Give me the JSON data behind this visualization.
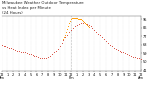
{
  "title": "Milwaukee Weather Outdoor Temperature vs Heat Index per Minute (24 Hours)",
  "title_line1": "Milwaukee Weather Outdoor Temperature",
  "title_line2": "vs Heat Index per Minute (24 Hours)",
  "bg_color": "#ffffff",
  "temp_color": "#cc1100",
  "heat_color": "#ff9900",
  "y_ticks": [
    41,
    50,
    59,
    68,
    77,
    86,
    95
  ],
  "y_min": 40,
  "y_max": 99,
  "title_fontsize": 2.8,
  "tick_fontsize": 2.5,
  "temp_data": [
    [
      0,
      68
    ],
    [
      20,
      67
    ],
    [
      40,
      67
    ],
    [
      60,
      66
    ],
    [
      80,
      65
    ],
    [
      100,
      65
    ],
    [
      120,
      64
    ],
    [
      140,
      63
    ],
    [
      160,
      62
    ],
    [
      180,
      62
    ],
    [
      200,
      61
    ],
    [
      220,
      60
    ],
    [
      240,
      60
    ],
    [
      260,
      59
    ],
    [
      280,
      58
    ],
    [
      300,
      58
    ],
    [
      320,
      57
    ],
    [
      340,
      56
    ],
    [
      360,
      56
    ],
    [
      380,
      55
    ],
    [
      400,
      54
    ],
    [
      420,
      54
    ],
    [
      440,
      54
    ],
    [
      460,
      54
    ],
    [
      480,
      55
    ],
    [
      500,
      56
    ],
    [
      520,
      58
    ],
    [
      540,
      60
    ],
    [
      560,
      62
    ],
    [
      580,
      64
    ],
    [
      600,
      67
    ],
    [
      620,
      70
    ],
    [
      640,
      73
    ],
    [
      660,
      76
    ],
    [
      680,
      79
    ],
    [
      700,
      82
    ],
    [
      720,
      84
    ],
    [
      740,
      86
    ],
    [
      760,
      88
    ],
    [
      780,
      89
    ],
    [
      800,
      90
    ],
    [
      820,
      91
    ],
    [
      840,
      91
    ],
    [
      860,
      91
    ],
    [
      880,
      90
    ],
    [
      900,
      89
    ],
    [
      920,
      88
    ],
    [
      940,
      86
    ],
    [
      960,
      84
    ],
    [
      980,
      82
    ],
    [
      1000,
      80
    ],
    [
      1020,
      78
    ],
    [
      1040,
      76
    ],
    [
      1060,
      74
    ],
    [
      1080,
      72
    ],
    [
      1100,
      70
    ],
    [
      1120,
      68
    ],
    [
      1140,
      67
    ],
    [
      1160,
      65
    ],
    [
      1180,
      64
    ],
    [
      1200,
      63
    ],
    [
      1220,
      62
    ],
    [
      1240,
      61
    ],
    [
      1260,
      60
    ],
    [
      1280,
      59
    ],
    [
      1300,
      58
    ],
    [
      1320,
      57
    ],
    [
      1340,
      56
    ],
    [
      1360,
      55
    ],
    [
      1380,
      55
    ],
    [
      1400,
      54
    ],
    [
      1420,
      54
    ],
    [
      1440,
      53
    ]
  ],
  "heat_data": [
    [
      640,
      74
    ],
    [
      650,
      76
    ],
    [
      660,
      79
    ],
    [
      670,
      82
    ],
    [
      680,
      85
    ],
    [
      690,
      88
    ],
    [
      700,
      91
    ],
    [
      710,
      93
    ],
    [
      720,
      95
    ],
    [
      730,
      96
    ],
    [
      740,
      97
    ],
    [
      750,
      97
    ],
    [
      760,
      97
    ],
    [
      770,
      96
    ],
    [
      780,
      96
    ],
    [
      790,
      95
    ],
    [
      800,
      95
    ],
    [
      810,
      95
    ],
    [
      820,
      95
    ],
    [
      830,
      94
    ],
    [
      840,
      93
    ],
    [
      850,
      92
    ],
    [
      860,
      91
    ],
    [
      870,
      90
    ],
    [
      880,
      89
    ],
    [
      890,
      88
    ],
    [
      900,
      87
    ]
  ],
  "x_tick_positions": [
    0,
    60,
    120,
    180,
    240,
    300,
    360,
    420,
    480,
    540,
    600,
    660,
    720,
    780,
    840,
    900,
    960,
    1020,
    1080,
    1140,
    1200,
    1260,
    1320,
    1380,
    1440
  ],
  "x_tick_labels": [
    "12",
    "1",
    "2",
    "3",
    "4",
    "5",
    "6",
    "7",
    "8",
    "9",
    "10",
    "11",
    "12",
    "1",
    "2",
    "3",
    "4",
    "5",
    "6",
    "7",
    "8",
    "9",
    "10",
    "11",
    "12"
  ],
  "x_row2": [
    "Am",
    "",
    "",
    "",
    "",
    "",
    "",
    "",
    "",
    "",
    "",
    "",
    "Pm",
    "",
    "",
    "",
    "",
    "",
    "",
    "",
    "",
    "",
    "",
    "",
    "Am"
  ],
  "vline_x": 720
}
